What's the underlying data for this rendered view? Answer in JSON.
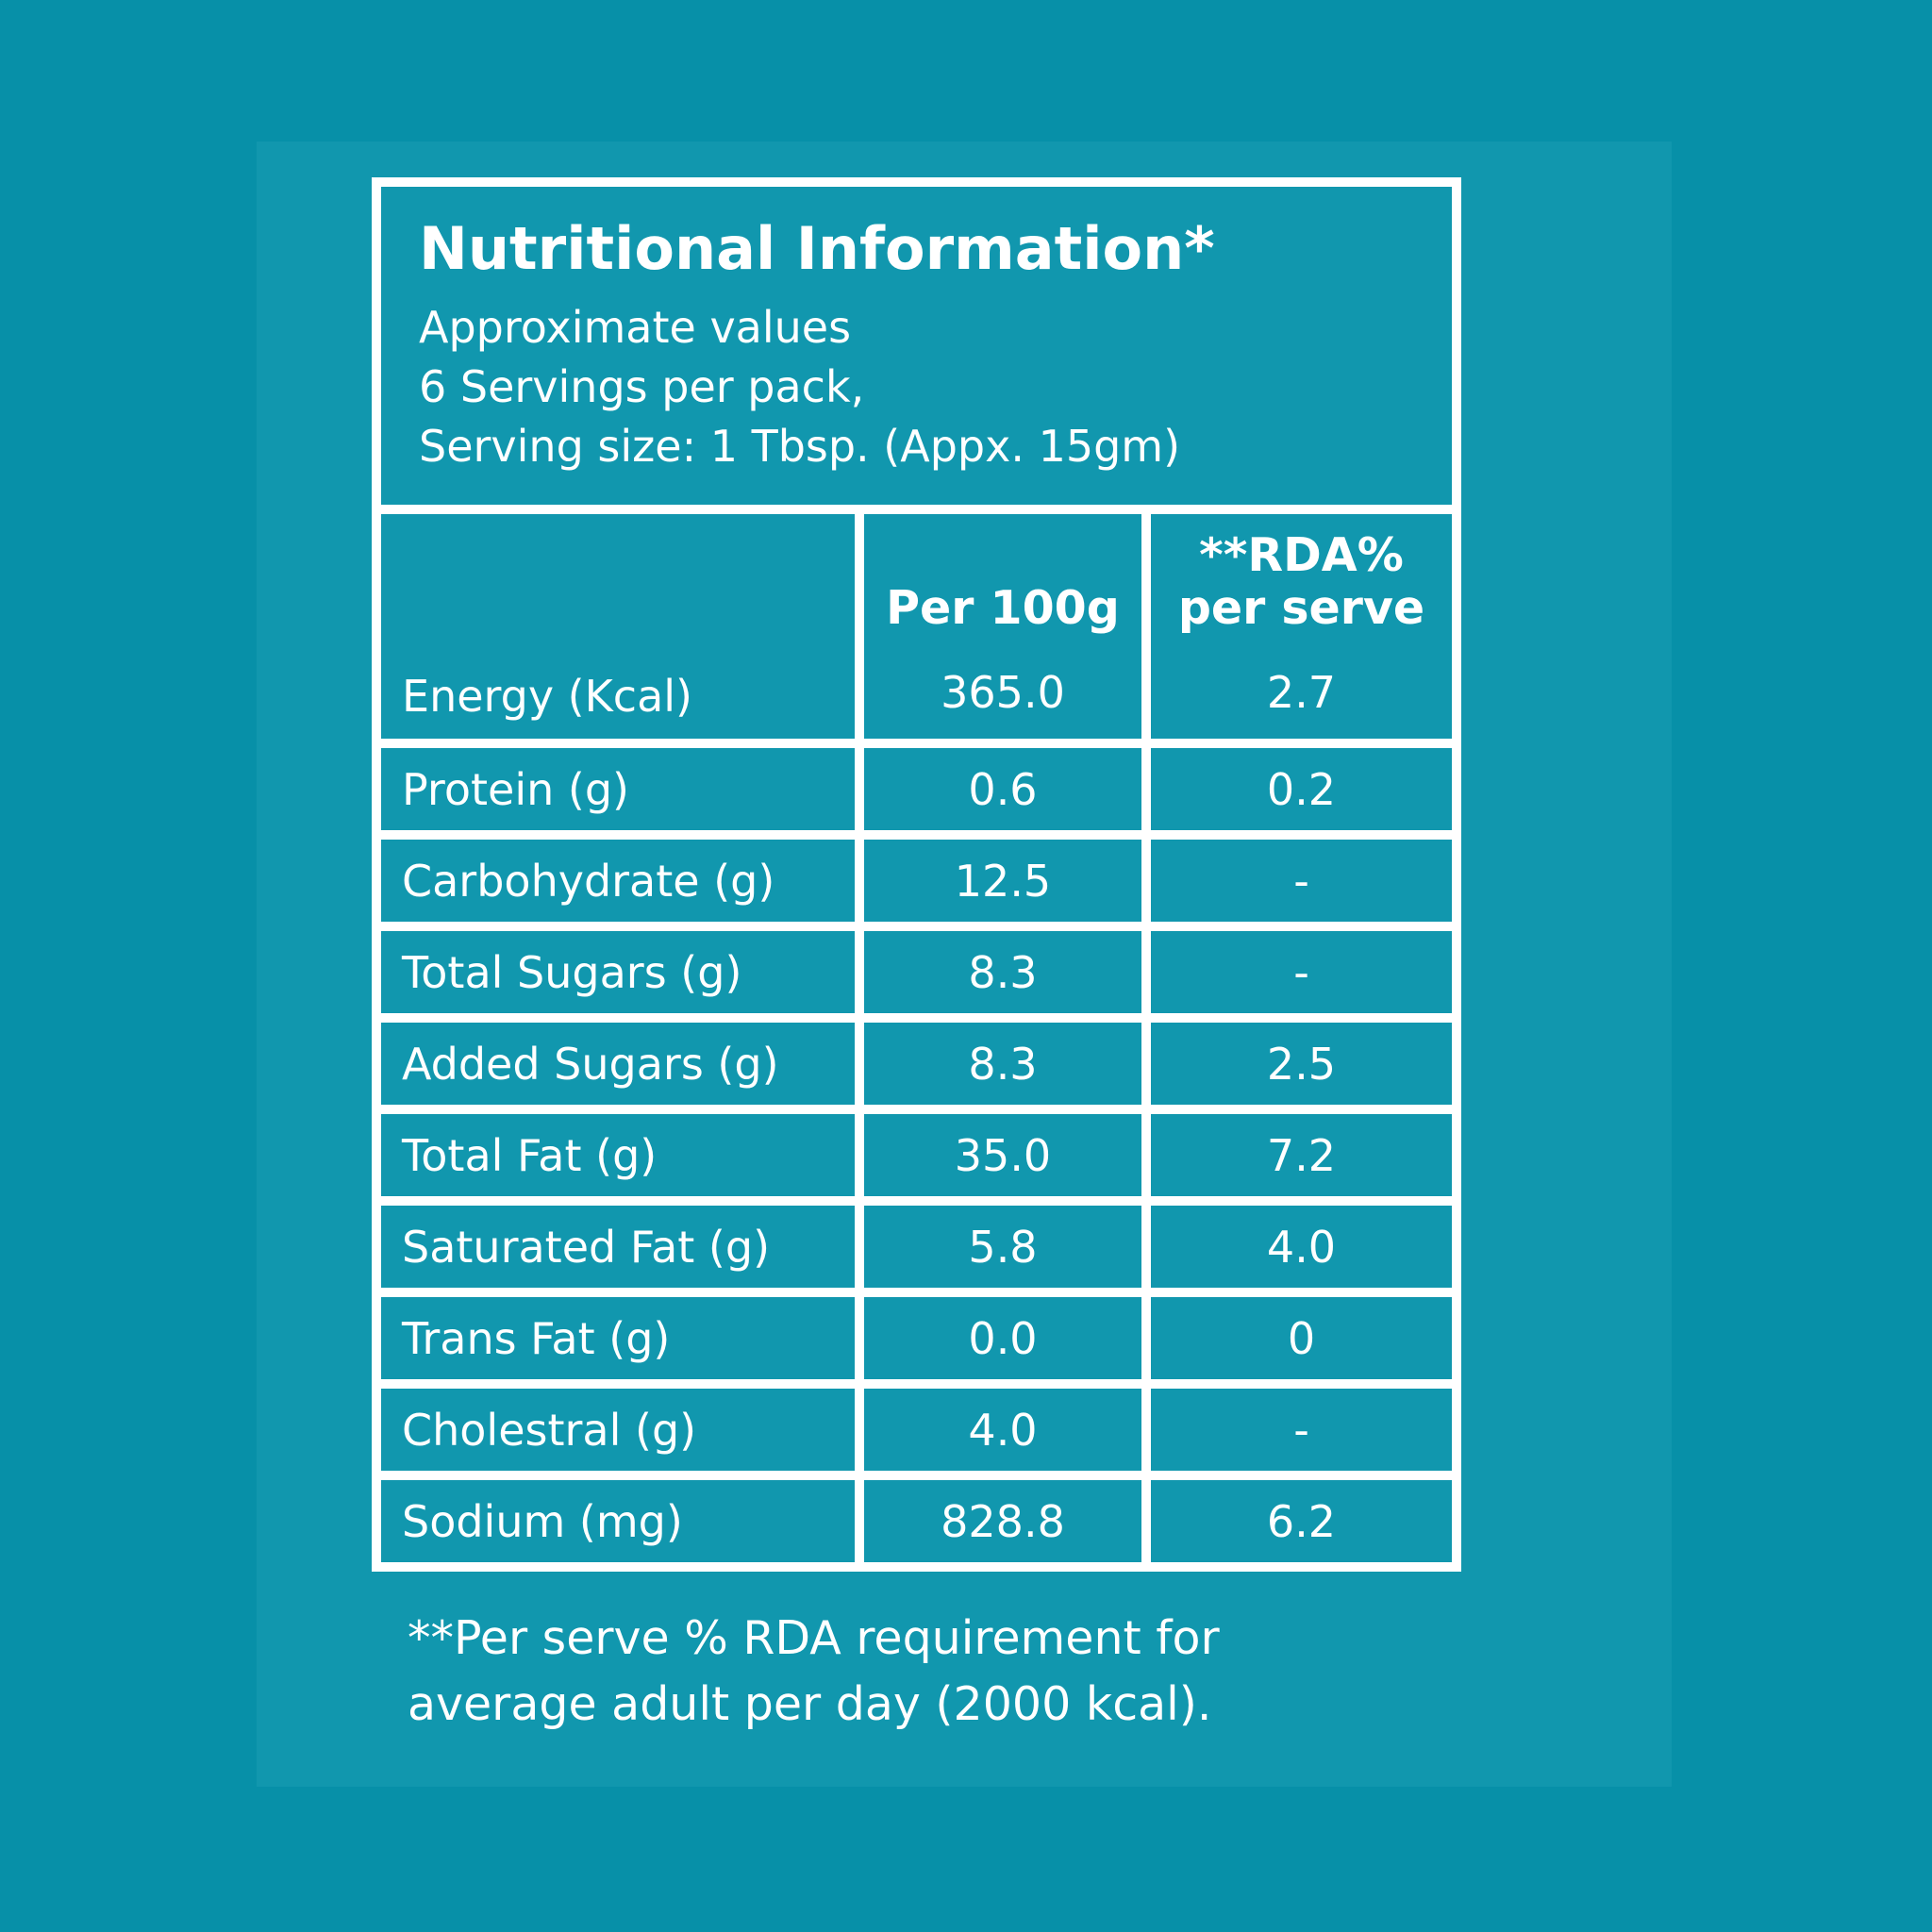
{
  "colors": {
    "background": "#0790a8",
    "card": "#1197ae",
    "grid_lines": "#ffffff",
    "text": "#ffffff"
  },
  "panel": {
    "title": "Nutritional Information*",
    "subtitle_lines": [
      "Approximate values",
      "6 Servings per pack,",
      "Serving size: 1 Tbsp. (Appx. 15gm)"
    ]
  },
  "table": {
    "header": {
      "per100g": "Per 100g",
      "rda_line1": "**RDA%",
      "rda_line2": "per serve"
    },
    "rows": [
      {
        "label": "Energy (Kcal)",
        "per100g": "365.0",
        "rda": "2.7"
      },
      {
        "label": "Protein (g)",
        "per100g": "0.6",
        "rda": "0.2"
      },
      {
        "label": "Carbohydrate (g)",
        "per100g": "12.5",
        "rda": "-"
      },
      {
        "label": "Total Sugars (g)",
        "per100g": "8.3",
        "rda": "-"
      },
      {
        "label": "Added Sugars (g)",
        "per100g": "8.3",
        "rda": "2.5"
      },
      {
        "label": "Total Fat (g)",
        "per100g": "35.0",
        "rda": "7.2"
      },
      {
        "label": "Saturated Fat (g)",
        "per100g": "5.8",
        "rda": "4.0"
      },
      {
        "label": "Trans Fat (g)",
        "per100g": "0.0",
        "rda": "0"
      },
      {
        "label": "Cholestral (g)",
        "per100g": "4.0",
        "rda": "-"
      },
      {
        "label": "Sodium (mg)",
        "per100g": "828.8",
        "rda": "6.2"
      }
    ]
  },
  "footnote": {
    "line1": "**Per serve % RDA requirement for",
    "line2": "average adult per day (2000 kcal)."
  }
}
